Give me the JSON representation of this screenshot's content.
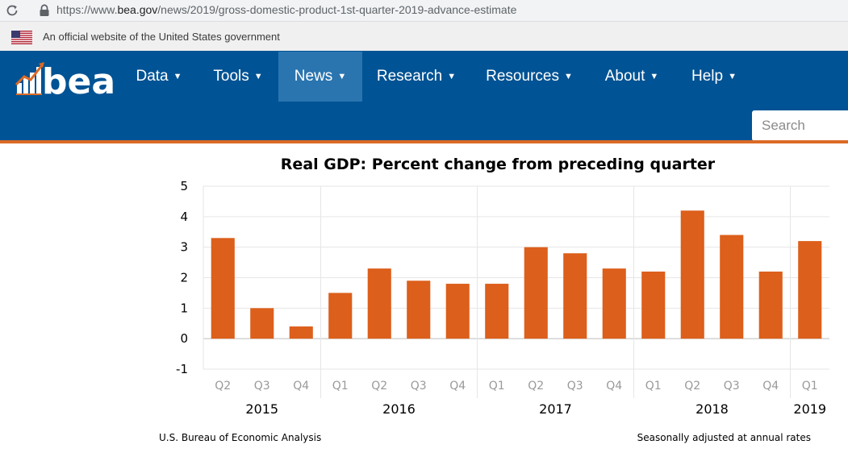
{
  "browser": {
    "url_prefix": "https://www.",
    "url_host": "bea.gov",
    "url_path": "/news/2019/gross-domestic-product-1st-quarter-2019-advance-estimate"
  },
  "gov_banner": {
    "text": "An official website of the United States government"
  },
  "nav": {
    "logo_text": "bea",
    "items": [
      {
        "label": "Data"
      },
      {
        "label": "Tools"
      },
      {
        "label": "News"
      },
      {
        "label": "Research"
      },
      {
        "label": "Resources"
      },
      {
        "label": "About"
      },
      {
        "label": "Help"
      }
    ],
    "active": "News",
    "search_placeholder": "Search"
  },
  "colors": {
    "nav_bg": "#005394",
    "nav_active": "#2a75b0",
    "accent": "#db6a25",
    "bar": "#dc5f1b"
  },
  "chart_data": {
    "type": "bar",
    "title": "Real GDP:  Percent change from preceding quarter",
    "categories": [
      "Q2",
      "Q3",
      "Q4",
      "Q1",
      "Q2",
      "Q3",
      "Q4",
      "Q1",
      "Q2",
      "Q3",
      "Q4",
      "Q1",
      "Q2",
      "Q3",
      "Q4",
      "Q1"
    ],
    "years": [
      {
        "label": "2015",
        "start": 0,
        "end": 2
      },
      {
        "label": "2016",
        "start": 3,
        "end": 6
      },
      {
        "label": "2017",
        "start": 7,
        "end": 10
      },
      {
        "label": "2018",
        "start": 11,
        "end": 14
      },
      {
        "label": "2019",
        "start": 15,
        "end": 15
      }
    ],
    "values": [
      3.3,
      1.0,
      0.4,
      1.5,
      2.3,
      1.9,
      1.8,
      1.8,
      3.0,
      2.8,
      2.3,
      2.2,
      4.2,
      3.4,
      2.2,
      3.2
    ],
    "ylim": [
      -1,
      5
    ],
    "yticks": [
      5,
      4,
      3,
      2,
      1,
      0,
      -1
    ],
    "grid": true,
    "source": "U.S. Bureau of Economic Analysis",
    "note": "Seasonally adjusted at annual rates"
  }
}
